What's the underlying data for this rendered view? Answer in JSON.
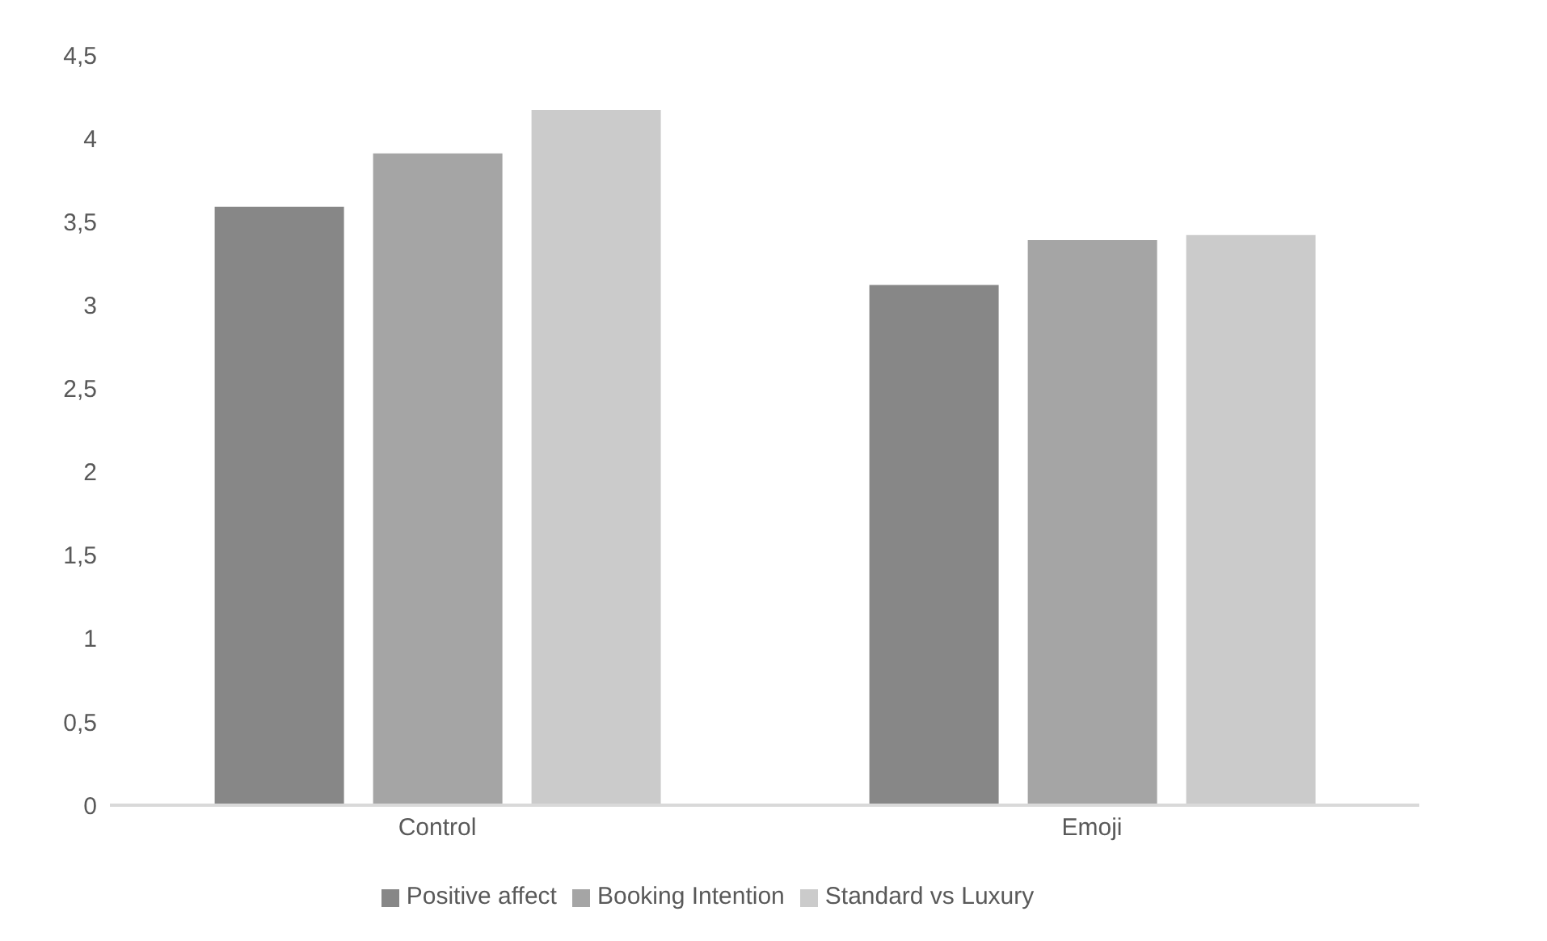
{
  "chart_data": {
    "type": "bar",
    "categories": [
      "Control",
      "Emoji"
    ],
    "series": [
      {
        "name": "Positive affect",
        "color": "#878787",
        "values": [
          3.59,
          3.12
        ]
      },
      {
        "name": "Booking Intention",
        "color": "#a5a5a5",
        "values": [
          3.91,
          3.39
        ]
      },
      {
        "name": "Standard vs Luxury",
        "color": "#cbcbcb",
        "values": [
          4.17,
          3.42
        ]
      }
    ],
    "ylim": [
      0,
      4.5
    ],
    "yticks": [
      0,
      {
        "value": 0.5,
        "label": "0,5"
      },
      1,
      {
        "value": 1.5,
        "label": "1,5"
      },
      2,
      {
        "value": 2.5,
        "label": "2,5"
      },
      3,
      {
        "value": 3.5,
        "label": "3,5"
      },
      4,
      {
        "value": 4.5,
        "label": "4,5"
      }
    ],
    "grid": false,
    "legend": "bottom"
  }
}
